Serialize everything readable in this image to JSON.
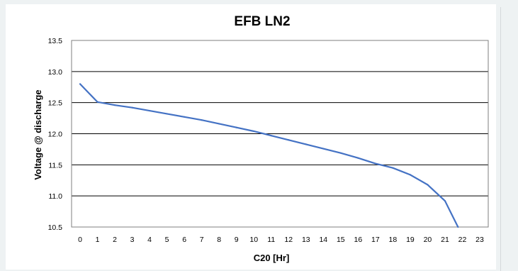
{
  "chart_data": {
    "type": "line",
    "title": "EFB LN2",
    "xlabel": "C20 [Hr]",
    "ylabel": "Voltage @ discharge",
    "xlim": [
      0,
      23
    ],
    "ylim": [
      10.5,
      13.5
    ],
    "x_ticks": [
      "0",
      "1",
      "2",
      "3",
      "4",
      "5",
      "6",
      "7",
      "8",
      "9",
      "10",
      "11",
      "12",
      "13",
      "14",
      "15",
      "16",
      "17",
      "18",
      "19",
      "20",
      "21",
      "22",
      "23"
    ],
    "y_ticks": [
      "10.5",
      "11.0",
      "11.5",
      "12.0",
      "12.5",
      "13.0",
      "13.5"
    ],
    "grid": "horizontal",
    "series": [
      {
        "color": "#4472c4",
        "x": [
          0,
          1,
          2,
          3,
          4,
          5,
          6,
          7,
          8,
          9,
          10,
          11,
          12,
          13,
          14,
          15,
          16,
          17,
          18,
          19,
          20,
          21,
          21.75
        ],
        "y": [
          12.8,
          12.51,
          12.46,
          12.42,
          12.37,
          12.32,
          12.27,
          12.22,
          12.16,
          12.1,
          12.04,
          11.97,
          11.9,
          11.83,
          11.76,
          11.69,
          11.61,
          11.52,
          11.45,
          11.34,
          11.18,
          10.92,
          10.5
        ]
      }
    ]
  }
}
